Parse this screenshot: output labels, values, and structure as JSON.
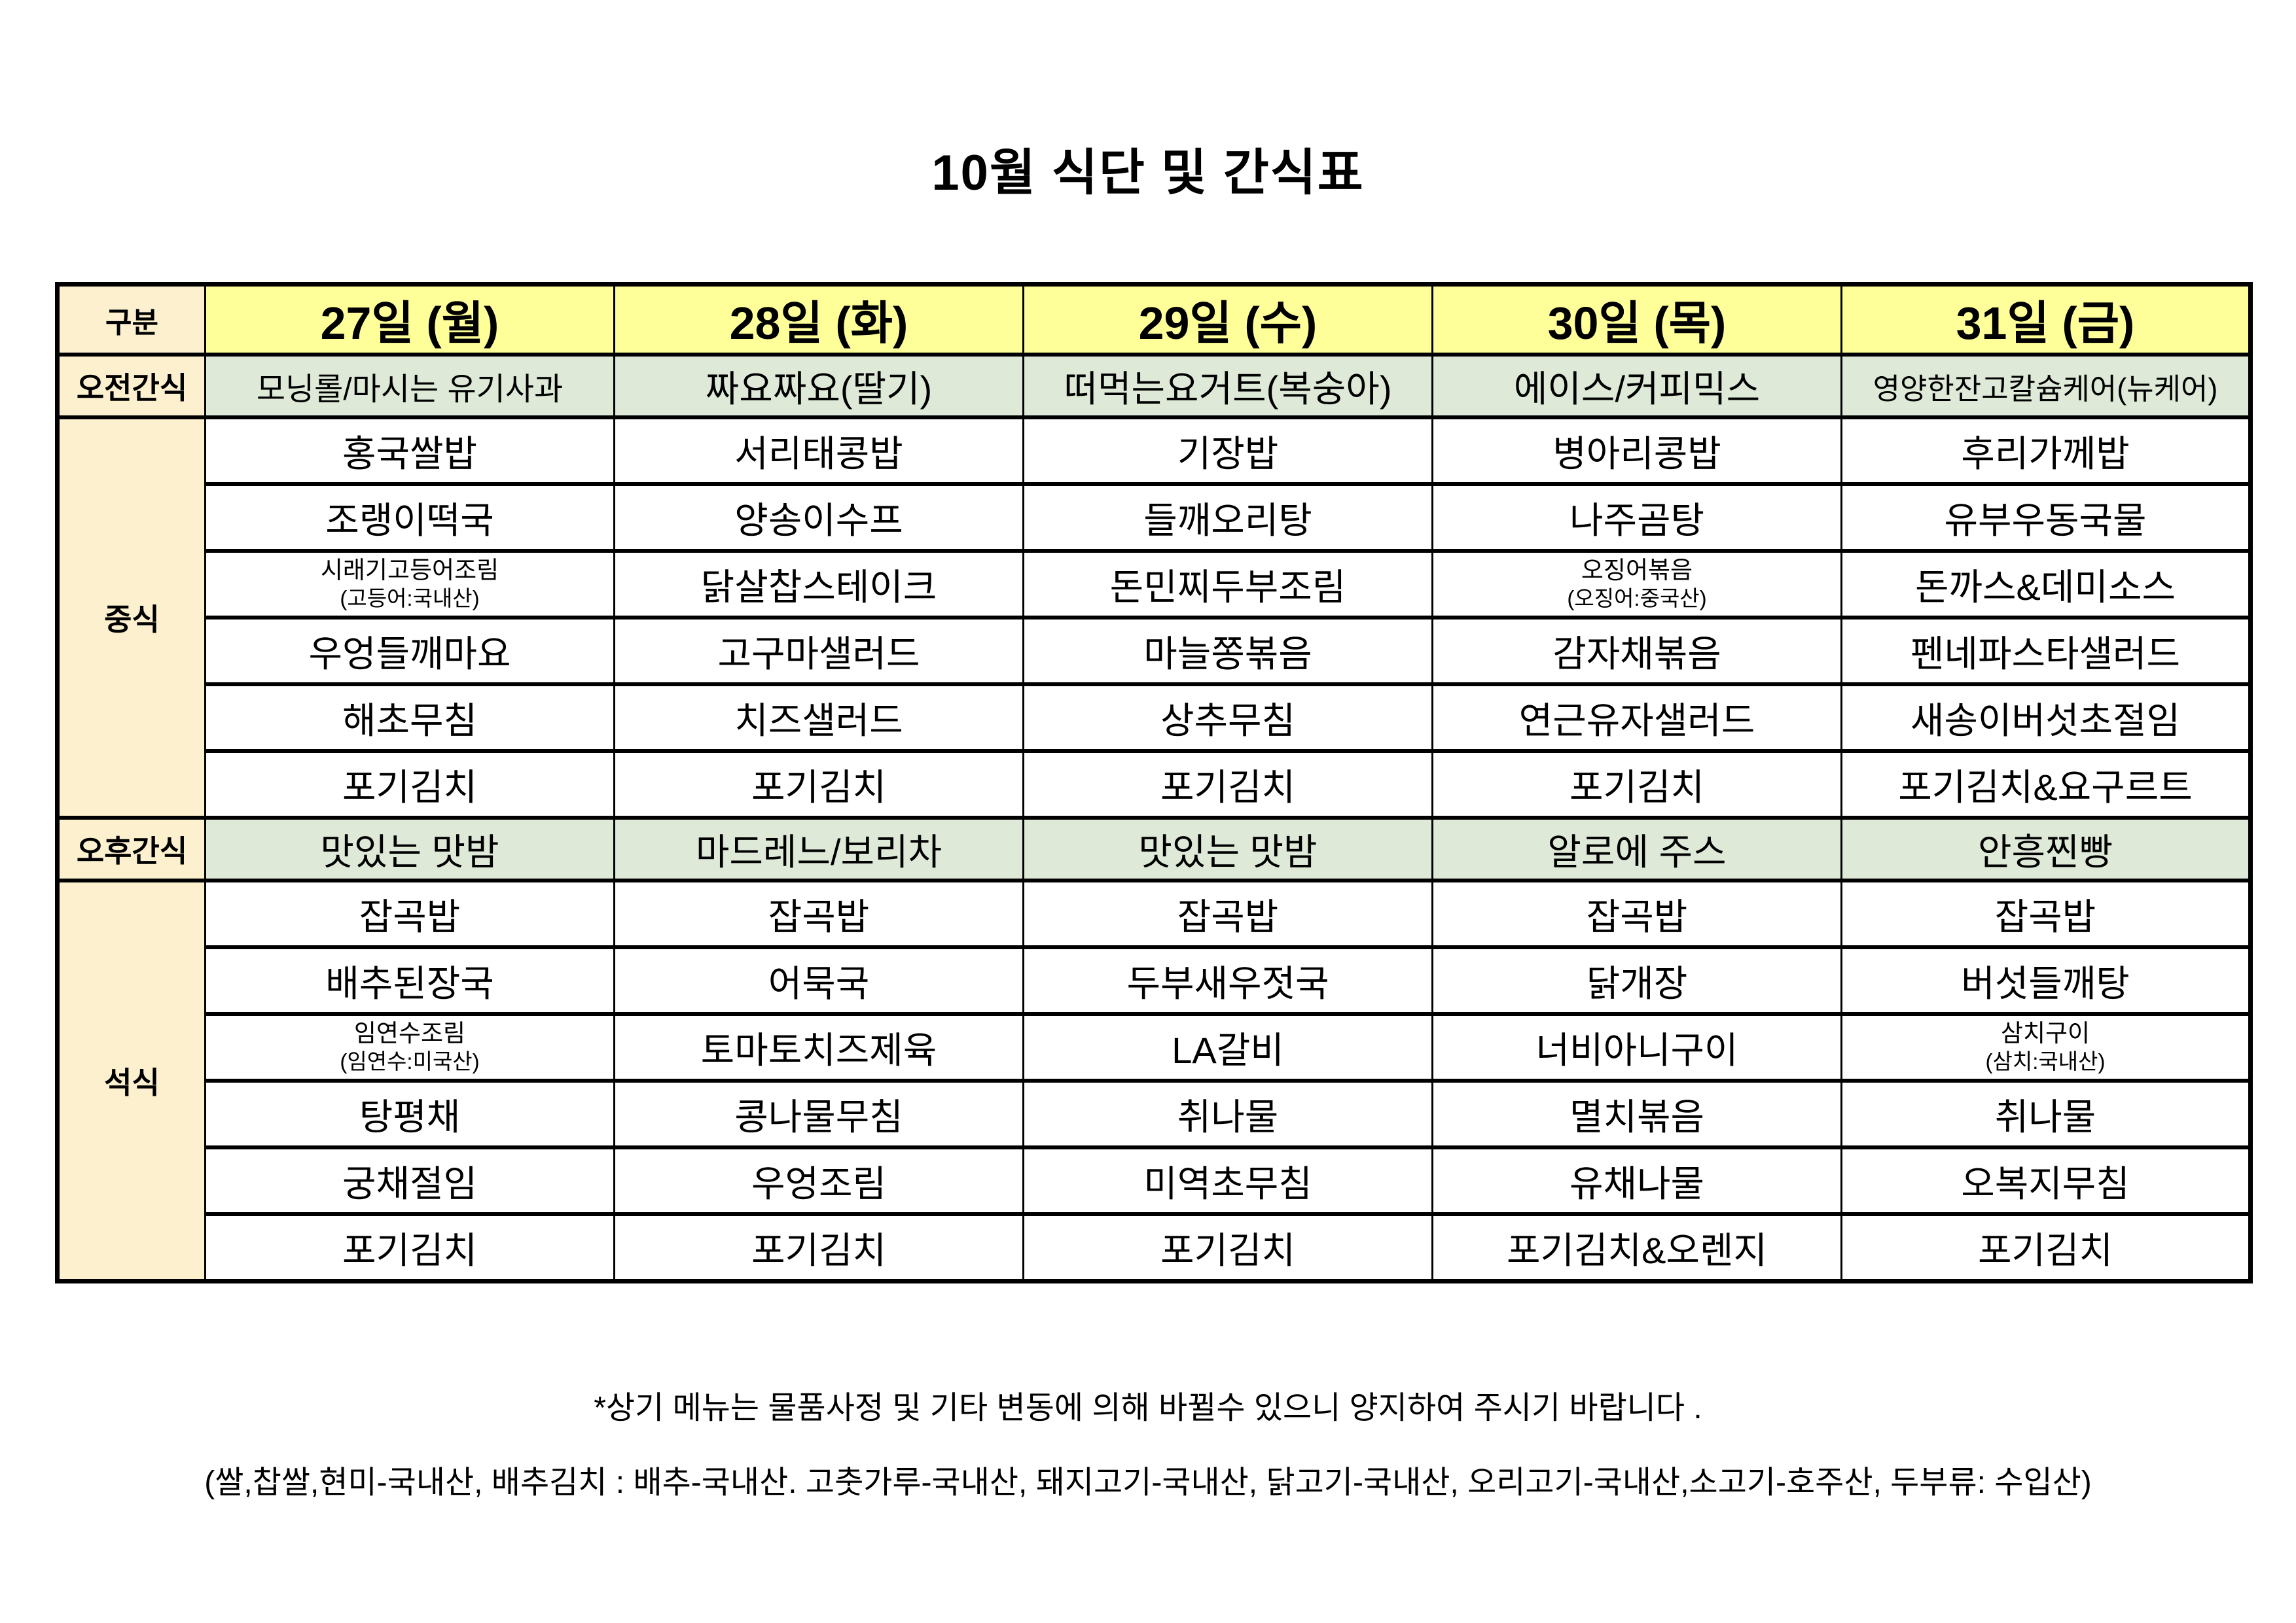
{
  "title": "10월 식단 및 간식표",
  "colors": {
    "day_header_yellow": "#FFFF99",
    "label_cream": "#FCF0CF",
    "snack_green": "#DEE9D8",
    "border_black": "#000000",
    "background": "#FFFFFF"
  },
  "table": {
    "corner": "구분",
    "days": [
      "27일 (월)",
      "28일 (화)",
      "29일 (수)",
      "30일 (목)",
      "31일 (금)"
    ],
    "am_snack": {
      "label": "오전간식",
      "items": [
        "모닝롤/마시는 유기사과",
        "짜요짜요(딸기)",
        "떠먹는요거트(복숭아)",
        "에이스/커피믹스",
        "영양한잔고칼슘케어(뉴케어)"
      ]
    },
    "lunch": {
      "label": "중식",
      "rows": [
        [
          "홍국쌀밥",
          "서리태콩밥",
          "기장밥",
          "병아리콩밥",
          "후리가께밥"
        ],
        [
          "조랭이떡국",
          "양송이수프",
          "들깨오리탕",
          "나주곰탕",
          "유부우동국물"
        ],
        [
          {
            "main": "시래기고등어조림",
            "sub": "(고등어:국내산)"
          },
          "닭살찹스테이크",
          "돈민찌두부조림",
          {
            "main": "오징어볶음",
            "sub": "(오징어:중국산)"
          },
          "돈까스&데미소스"
        ],
        [
          "우엉들깨마요",
          "고구마샐러드",
          "마늘쫑볶음",
          "감자채볶음",
          "펜네파스타샐러드"
        ],
        [
          "해초무침",
          "치즈샐러드",
          "상추무침",
          "연근유자샐러드",
          "새송이버섯초절임"
        ],
        [
          "포기김치",
          "포기김치",
          "포기김치",
          "포기김치",
          "포기김치&요구르트"
        ]
      ]
    },
    "pm_snack": {
      "label": "오후간식",
      "items": [
        "맛있는 맛밤",
        "마드레느/보리차",
        "맛있는 맛밤",
        "알로에 주스",
        "안흥찐빵"
      ]
    },
    "dinner": {
      "label": "석식",
      "rows": [
        [
          "잡곡밥",
          "잡곡밥",
          "잡곡밥",
          "잡곡밥",
          "잡곡밥"
        ],
        [
          "배추된장국",
          "어묵국",
          "두부새우젓국",
          "닭개장",
          "버섯들깨탕"
        ],
        [
          {
            "main": "임연수조림",
            "sub": "(임연수:미국산)"
          },
          "토마토치즈제육",
          "LA갈비",
          "너비아니구이",
          {
            "main": "삼치구이",
            "sub": "(삼치:국내산)"
          }
        ],
        [
          "탕평채",
          "콩나물무침",
          "취나물",
          "멸치볶음",
          "취나물"
        ],
        [
          "궁채절임",
          "우엉조림",
          "미역초무침",
          "유채나물",
          "오복지무침"
        ],
        [
          "포기김치",
          "포기김치",
          "포기김치",
          "포기김치&오렌지",
          "포기김치"
        ]
      ]
    }
  },
  "notes": {
    "line1": "*상기 메뉴는 물품사정 및 기타 변동에 의해 바뀔수 있으니 양지하여 주시기 바랍니다 .",
    "line2": "(쌀,찹쌀,현미-국내산, 배추김치 : 배추-국내산. 고춧가루-국내산, 돼지고기-국내산, 닭고기-국내산, 오리고기-국내산,소고기-호주산, 두부류: 수입산)"
  }
}
